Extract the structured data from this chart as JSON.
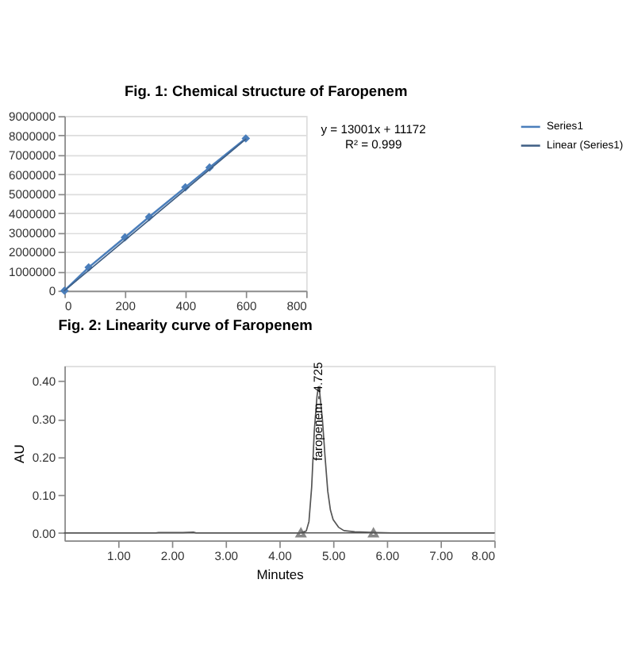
{
  "chart_data": [
    {
      "type": "line",
      "title": "Fig. 2: Linearity curve of Faropenem",
      "annotations": [
        "Fig. 1: Chemical structure of Faropenem",
        "y = 13001x + 11172",
        "R² = 0.999"
      ],
      "series": [
        {
          "name": "Series1",
          "marker": "diamond",
          "color": "#4a7ebb",
          "x": [
            0,
            80,
            200,
            280,
            400,
            480,
            600
          ],
          "values": [
            0,
            1200000,
            2750000,
            3800000,
            5330000,
            6350000,
            7850000
          ]
        },
        {
          "name": "Linear (Series1)",
          "marker": "none",
          "color": "#3f5f85",
          "x": [
            0,
            600
          ],
          "values": [
            0,
            7810000
          ]
        }
      ],
      "xlim": [
        0,
        800
      ],
      "xticks": [
        0,
        200,
        400,
        600,
        800
      ],
      "ylim": [
        0,
        9000000
      ],
      "yticks": [
        0,
        1000000,
        2000000,
        3000000,
        4000000,
        5000000,
        6000000,
        7000000,
        8000000,
        9000000
      ],
      "grid": "y",
      "legend": "right"
    },
    {
      "type": "line",
      "xlabel": "Minutes",
      "ylabel": "AU",
      "annotations": [
        {
          "text": "faropenem - 4.725",
          "x": 4.725,
          "y": 0.19
        }
      ],
      "series": [
        {
          "marker": "none",
          "color": "#555555",
          "x": [
            0,
            1.7,
            1.75,
            2.2,
            2.4,
            2.45,
            4.4,
            4.5,
            4.55,
            4.6,
            4.65,
            4.7,
            4.725,
            4.75,
            4.8,
            4.85,
            4.9,
            4.95,
            5.0,
            5.1,
            5.2,
            5.4,
            5.8,
            6.1,
            8.0
          ],
          "values": [
            0,
            0,
            0.001,
            0.001,
            0.002,
            0,
            0,
            0.005,
            0.03,
            0.12,
            0.27,
            0.36,
            0.385,
            0.37,
            0.3,
            0.2,
            0.11,
            0.06,
            0.035,
            0.015,
            0.006,
            0.003,
            0.001,
            0,
            0
          ]
        },
        {
          "type": "scatter",
          "marker": "triangle",
          "color": "#555555",
          "x": [
            4.4,
            5.75
          ],
          "values": [
            0,
            0
          ]
        }
      ],
      "ref_lines": [
        {
          "axis": "y",
          "value": 0,
          "color": "#555555"
        }
      ],
      "xlim": [
        0,
        8
      ],
      "xticks": [
        {
          "value": 1,
          "label": "1.00"
        },
        {
          "value": 2,
          "label": "2.00"
        },
        {
          "value": 3,
          "label": "3.00"
        },
        {
          "value": 4,
          "label": "4.00"
        },
        {
          "value": 5,
          "label": "5.00"
        },
        {
          "value": 6,
          "label": "6.00"
        },
        {
          "value": 7,
          "label": "7.00"
        },
        {
          "value": 8,
          "label": "8.00"
        }
      ],
      "ylim": [
        -0.02,
        0.44
      ],
      "yticks": [
        {
          "value": 0,
          "label": "0.00"
        },
        {
          "value": 0.1,
          "label": "0.10"
        },
        {
          "value": 0.2,
          "label": "0.20"
        },
        {
          "value": 0.3,
          "label": "0.30"
        },
        {
          "value": 0.4,
          "label": "0.40"
        }
      ],
      "grid": false,
      "legend": false
    }
  ]
}
